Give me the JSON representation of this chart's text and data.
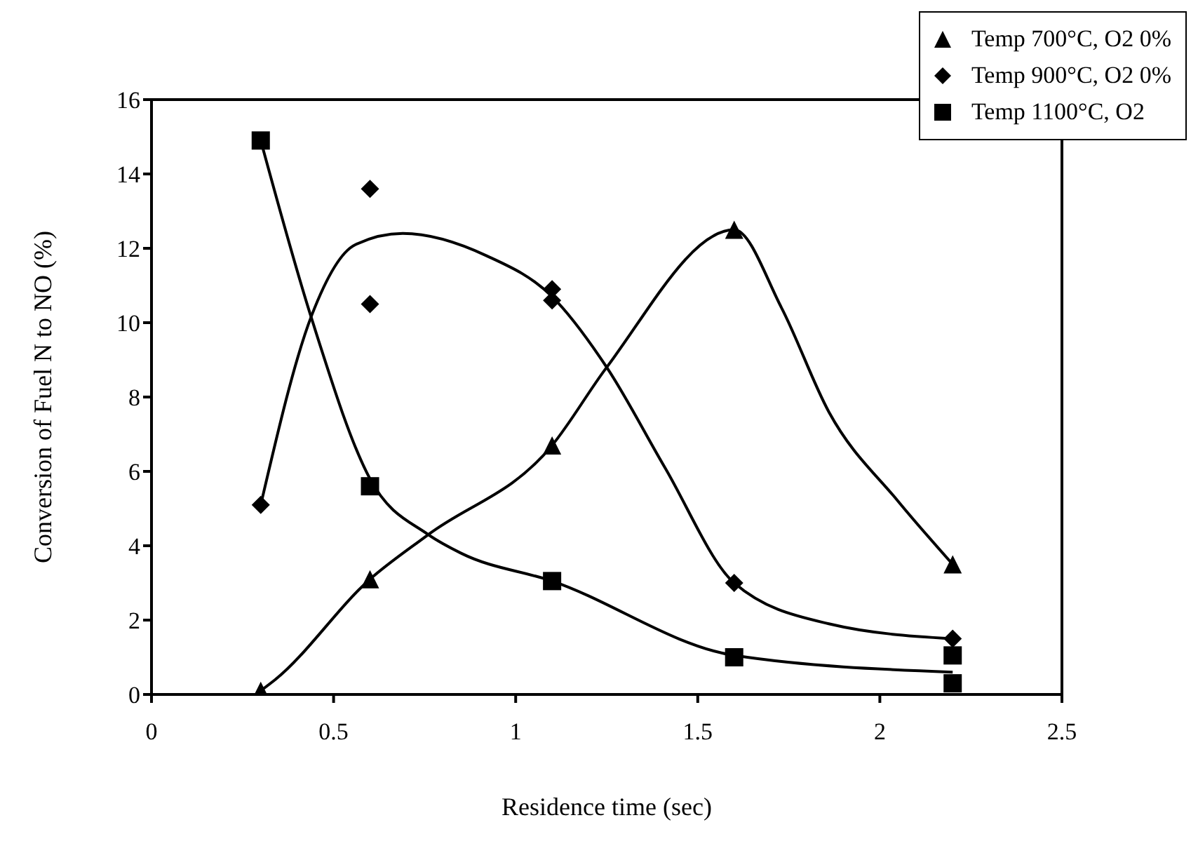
{
  "chart_data": {
    "type": "scatter",
    "xlabel": "Residence time (sec)",
    "ylabel": "Conversion of Fuel N to NO (%)",
    "xlim": [
      0,
      2.5
    ],
    "xticks": [
      0,
      0.5,
      1,
      1.5,
      2,
      2.5
    ],
    "ylim": [
      0,
      16
    ],
    "yticks": [
      0,
      2,
      4,
      6,
      8,
      10,
      12,
      14,
      16
    ],
    "grid": false,
    "legend": "top right",
    "series": [
      {
        "name": "Temp 700°C, O2 0%",
        "marker": "triangle",
        "color": "#000000",
        "x": [
          0.3,
          0.6,
          1.1,
          1.6,
          2.2
        ],
        "values": [
          0.1,
          3.1,
          6.7,
          12.5,
          3.5
        ]
      },
      {
        "name": "Temp 900°C, O2 0%",
        "marker": "diamond",
        "color": "#000000",
        "x": [
          0.3,
          0.6,
          0.6,
          1.1,
          1.1,
          1.6,
          2.2
        ],
        "values": [
          5.1,
          13.6,
          10.5,
          10.9,
          10.6,
          3.0,
          1.5
        ]
      },
      {
        "name": "Temp 1100°C, O2",
        "marker": "square",
        "color": "#000000",
        "x": [
          0.3,
          0.6,
          1.1,
          1.6,
          2.2,
          2.2
        ],
        "values": [
          14.9,
          5.6,
          3.05,
          1.0,
          1.05,
          0.3
        ]
      },
      {
        "type": "line",
        "marker": "none",
        "line_style": "solid",
        "color": "#000000",
        "x": [
          0.3,
          0.34,
          0.6,
          0.76,
          1.1,
          1.25,
          1.6,
          1.73,
          1.86,
          2.05,
          2.2
        ],
        "values": [
          0.1,
          0.4,
          3.1,
          4.3,
          6.7,
          8.8,
          12.5,
          10.4,
          7.6,
          5.2,
          3.5
        ]
      },
      {
        "type": "line",
        "marker": "none",
        "line_style": "solid",
        "color": "#000000",
        "x": [
          0.3,
          0.44,
          0.56,
          0.69,
          0.92,
          1.1,
          1.25,
          1.41,
          1.6,
          1.86,
          2.2
        ],
        "values": [
          5.1,
          10.2,
          12.1,
          12.4,
          11.8,
          10.7,
          8.8,
          6.1,
          3.0,
          1.9,
          1.5
        ]
      },
      {
        "type": "line",
        "marker": "none",
        "line_style": "solid",
        "color": "#000000",
        "x": [
          0.3,
          0.44,
          0.6,
          0.76,
          0.85,
          1.1,
          1.6,
          2.2
        ],
        "values": [
          14.9,
          10.1,
          5.8,
          4.3,
          3.8,
          3.05,
          1.05,
          0.6
        ]
      }
    ]
  }
}
